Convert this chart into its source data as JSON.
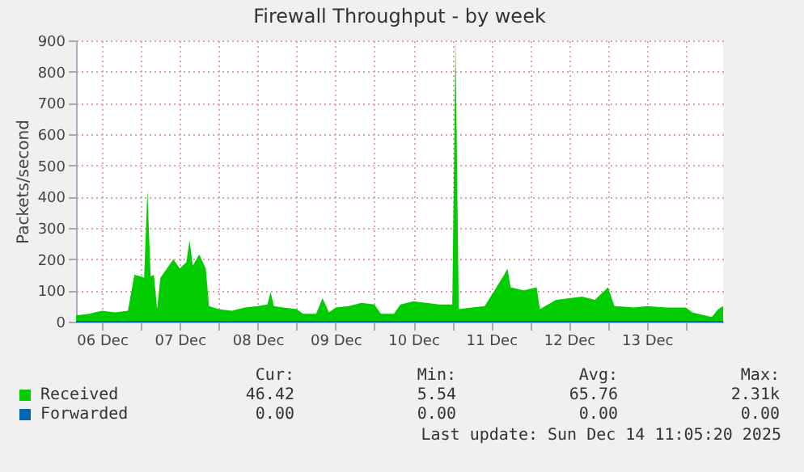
{
  "chart_data": {
    "type": "area",
    "title": "Firewall Throughput - by week",
    "ylabel": "Packets/second",
    "x": [
      "2025-12-06T04:00",
      "2025-12-06T08:00",
      "2025-12-06T12:00",
      "2025-12-06T16:00",
      "2025-12-06T20:00",
      "2025-12-06T22:00",
      "2025-12-07T00:00",
      "2025-12-07T01:00",
      "2025-12-07T02:00",
      "2025-12-07T03:00",
      "2025-12-07T04:00",
      "2025-12-07T05:00",
      "2025-12-07T06:00",
      "2025-12-07T08:00",
      "2025-12-07T10:00",
      "2025-12-07T12:00",
      "2025-12-07T14:00",
      "2025-12-07T15:00",
      "2025-12-07T16:00",
      "2025-12-07T18:00",
      "2025-12-07T20:00",
      "2025-12-07T21:00",
      "2025-12-08T00:00",
      "2025-12-08T04:00",
      "2025-12-08T08:00",
      "2025-12-08T12:00",
      "2025-12-08T15:00",
      "2025-12-08T16:00",
      "2025-12-08T17:00",
      "2025-12-08T20:00",
      "2025-12-09T00:00",
      "2025-12-09T02:00",
      "2025-12-09T06:00",
      "2025-12-09T08:00",
      "2025-12-09T10:00",
      "2025-12-09T12:00",
      "2025-12-09T16:00",
      "2025-12-09T20:00",
      "2025-12-10T00:00",
      "2025-12-10T02:00",
      "2025-12-10T06:00",
      "2025-12-10T08:00",
      "2025-12-10T12:00",
      "2025-12-10T16:00",
      "2025-12-10T20:00",
      "2025-12-11T00:00",
      "2025-12-11T01:00",
      "2025-12-11T02:00",
      "2025-12-11T06:00",
      "2025-12-11T10:00",
      "2025-12-11T13:00",
      "2025-12-11T16:00",
      "2025-12-11T17:00",
      "2025-12-11T18:00",
      "2025-12-11T22:00",
      "2025-12-12T02:00",
      "2025-12-12T03:00",
      "2025-12-12T08:00",
      "2025-12-12T12:00",
      "2025-12-12T16:00",
      "2025-12-12T20:00",
      "2025-12-13T00:00",
      "2025-12-13T02:00",
      "2025-12-13T08:00",
      "2025-12-13T12:00",
      "2025-12-13T18:00",
      "2025-12-14T00:00",
      "2025-12-14T02:00",
      "2025-12-14T08:00",
      "2025-12-14T10:00",
      "2025-12-14T11:30"
    ],
    "series": [
      {
        "name": "Received",
        "color": "#00cc00",
        "values": [
          20,
          25,
          35,
          30,
          35,
          150,
          145,
          140,
          420,
          145,
          150,
          40,
          140,
          170,
          200,
          170,
          190,
          260,
          180,
          215,
          170,
          50,
          40,
          35,
          45,
          50,
          55,
          95,
          50,
          45,
          40,
          25,
          25,
          75,
          30,
          45,
          50,
          60,
          55,
          25,
          25,
          55,
          65,
          60,
          55,
          55,
          900,
          40,
          45,
          50,
          100,
          150,
          170,
          110,
          100,
          110,
          40,
          70,
          75,
          80,
          70,
          110,
          50,
          45,
          50,
          45,
          45,
          30,
          15,
          40,
          50
        ]
      },
      {
        "name": "Forwarded",
        "type": "line",
        "color": "#0066b3",
        "x": [
          "2025-12-06T04:00",
          "2025-12-14T11:30"
        ],
        "values": [
          0,
          0
        ]
      }
    ],
    "xlim": [
      "2025-12-06T04:00",
      "2025-12-14T11:30"
    ],
    "xticks": [
      {
        "value": "2025-12-06T12:00",
        "label": "06 Dec"
      },
      {
        "value": "2025-12-07T00:00",
        "label": null
      },
      {
        "value": "2025-12-07T12:00",
        "label": "07 Dec"
      },
      {
        "value": "2025-12-08T00:00",
        "label": null
      },
      {
        "value": "2025-12-08T12:00",
        "label": "08 Dec"
      },
      {
        "value": "2025-12-09T00:00",
        "label": null
      },
      {
        "value": "2025-12-09T12:00",
        "label": "09 Dec"
      },
      {
        "value": "2025-12-10T00:00",
        "label": null
      },
      {
        "value": "2025-12-10T12:00",
        "label": "10 Dec"
      },
      {
        "value": "2025-12-11T00:00",
        "label": null
      },
      {
        "value": "2025-12-11T12:00",
        "label": "11 Dec"
      },
      {
        "value": "2025-12-12T00:00",
        "label": null
      },
      {
        "value": "2025-12-12T12:00",
        "label": "12 Dec"
      },
      {
        "value": "2025-12-13T00:00",
        "label": null
      },
      {
        "value": "2025-12-13T12:00",
        "label": "13 Dec"
      },
      {
        "value": "2025-12-14T00:00",
        "label": null
      }
    ],
    "ylim": [
      0,
      900
    ],
    "yticks": [
      0,
      100,
      200,
      300,
      400,
      500,
      600,
      700,
      800,
      900
    ],
    "grid": true,
    "legend": "bottom",
    "annotations": [
      "Cur:",
      "Min:",
      "Avg:",
      "Max:",
      "46.42",
      "5.54",
      "65.76",
      "2.31k",
      "0.00",
      "0.00",
      "0.00",
      "0.00",
      "Last update: Sun Dec 14 11:05:20 2025"
    ]
  }
}
